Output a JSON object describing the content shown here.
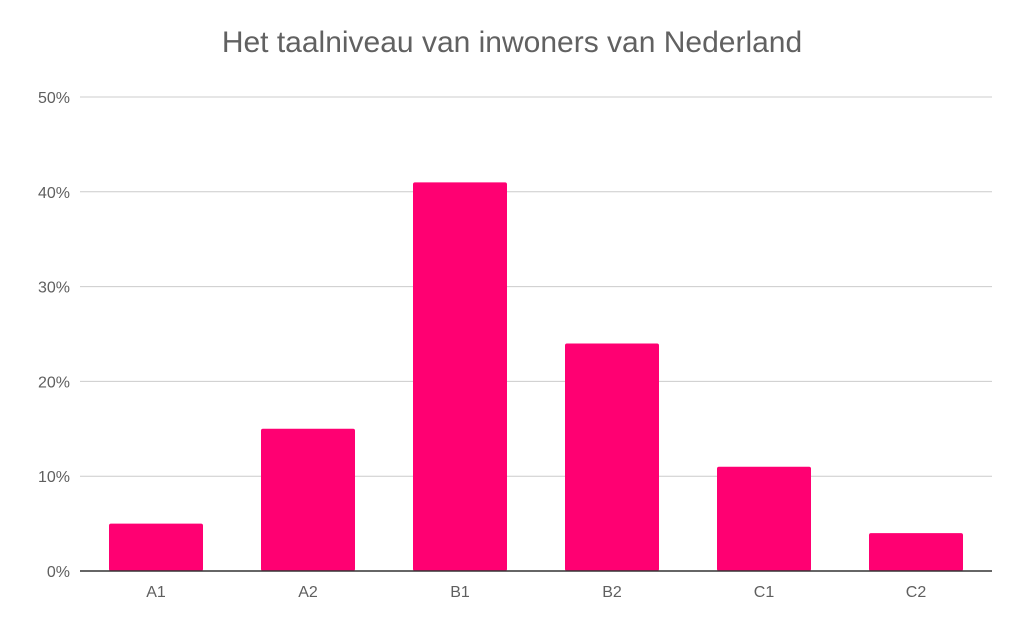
{
  "chart_data": {
    "type": "bar",
    "title": "Het taalniveau van inwoners van Nederland",
    "xlabel": "",
    "ylabel": "",
    "categories": [
      "A1",
      "A2",
      "B1",
      "B2",
      "C1",
      "C2"
    ],
    "values": [
      5,
      15,
      41,
      24,
      11,
      4
    ],
    "ylim": [
      0,
      50
    ],
    "yticks": [
      0,
      10,
      20,
      30,
      40,
      50
    ],
    "ytick_labels": [
      "0%",
      "10%",
      "20%",
      "30%",
      "40%",
      "50%"
    ],
    "grid": true,
    "legend": "none",
    "bar_color": "#ff0072"
  }
}
